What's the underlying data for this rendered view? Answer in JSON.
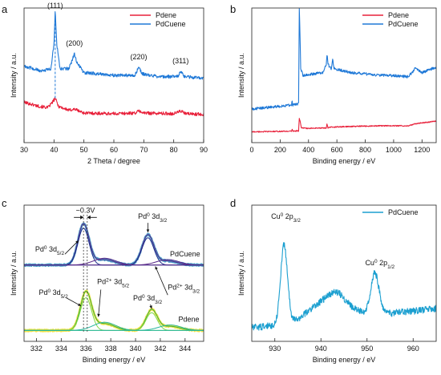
{
  "panels": [
    {
      "id": "a",
      "letter": "a",
      "chart_data": {
        "type": "line",
        "title": "",
        "xlabel": "2 Theta / degree",
        "ylabel": "Intensity / a.u.",
        "xlim": [
          30,
          90
        ],
        "ylim": [
          0,
          1
        ],
        "xticks": [
          30,
          40,
          50,
          60,
          70,
          80,
          90
        ],
        "yticks_visible": false,
        "legend": {
          "position": "top-right",
          "entries": [
            "Pdene",
            "PdCuene"
          ]
        },
        "series": [
          {
            "name": "Pdene",
            "color": "#e8203a",
            "noise": 0.012,
            "points": [
              [
                30,
                0.3
              ],
              [
                35,
                0.27
              ],
              [
                38,
                0.26
              ],
              [
                39.5,
                0.3
              ],
              [
                40.4,
                0.33
              ],
              [
                41.5,
                0.27
              ],
              [
                45,
                0.24
              ],
              [
                46.8,
                0.25
              ],
              [
                50,
                0.22
              ],
              [
                60,
                0.215
              ],
              [
                67,
                0.22
              ],
              [
                68.5,
                0.235
              ],
              [
                70,
                0.22
              ],
              [
                80,
                0.215
              ],
              [
                82.3,
                0.235
              ],
              [
                84,
                0.215
              ],
              [
                90,
                0.21
              ]
            ]
          },
          {
            "name": "PdCuene",
            "color": "#1e78d7",
            "noise": 0.012,
            "points": [
              [
                30,
                0.57
              ],
              [
                36,
                0.53
              ],
              [
                39,
                0.55
              ],
              [
                40.0,
                0.74
              ],
              [
                40.4,
                0.98
              ],
              [
                40.9,
                0.74
              ],
              [
                42,
                0.55
              ],
              [
                45,
                0.55
              ],
              [
                46.2,
                0.62
              ],
              [
                46.8,
                0.66
              ],
              [
                47.6,
                0.6
              ],
              [
                50,
                0.52
              ],
              [
                60,
                0.5
              ],
              [
                67,
                0.5
              ],
              [
                68.3,
                0.56
              ],
              [
                69.5,
                0.51
              ],
              [
                75,
                0.49
              ],
              [
                81.5,
                0.49
              ],
              [
                82.3,
                0.53
              ],
              [
                83.5,
                0.49
              ],
              [
                90,
                0.48
              ]
            ]
          }
        ],
        "annotations": [
          {
            "text": "(111)",
            "x": 40.4,
            "y": 1.0
          },
          {
            "text": "(200)",
            "x": 46.8,
            "y": 0.72
          },
          {
            "text": "(220)",
            "x": 68.3,
            "y": 0.62
          },
          {
            "text": "(311)",
            "x": 82.3,
            "y": 0.59
          }
        ],
        "reference_line": {
          "x": 40.4,
          "y_from": 0.33,
          "y_to": 0.96,
          "color": "#1e78d7",
          "style": "dashed"
        }
      }
    },
    {
      "id": "b",
      "letter": "b",
      "chart_data": {
        "type": "line",
        "title": "",
        "xlabel": "Binding energy / eV",
        "ylabel": "Intensity / a.u.",
        "xlim": [
          0,
          1300
        ],
        "ylim": [
          0,
          1
        ],
        "xticks": [
          0,
          200,
          400,
          600,
          800,
          1000,
          1200
        ],
        "yticks_visible": false,
        "legend": {
          "position": "top-right",
          "entries": [
            "Pdene",
            "PdCuene"
          ]
        },
        "series": [
          {
            "name": "Pdene",
            "color": "#e8203a",
            "noise": 0.004,
            "points": [
              [
                0,
                0.08
              ],
              [
                280,
                0.085
              ],
              [
                284,
                0.1
              ],
              [
                288,
                0.086
              ],
              [
                330,
                0.088
              ],
              [
                335,
                0.18
              ],
              [
                340,
                0.16
              ],
              [
                350,
                0.11
              ],
              [
                400,
                0.105
              ],
              [
                525,
                0.11
              ],
              [
                531,
                0.14
              ],
              [
                537,
                0.11
              ],
              [
                560,
                0.115
              ],
              [
                700,
                0.12
              ],
              [
                900,
                0.125
              ],
              [
                1100,
                0.125
              ],
              [
                1140,
                0.135
              ],
              [
                1150,
                0.14
              ],
              [
                1300,
                0.16
              ]
            ]
          },
          {
            "name": "PdCuene",
            "color": "#1e78d7",
            "noise": 0.01,
            "points": [
              [
                0,
                0.25
              ],
              [
                100,
                0.26
              ],
              [
                200,
                0.27
              ],
              [
                280,
                0.28
              ],
              [
                284,
                0.33
              ],
              [
                288,
                0.28
              ],
              [
                330,
                0.29
              ],
              [
                335,
                1.0
              ],
              [
                340,
                0.8
              ],
              [
                345,
                0.55
              ],
              [
                360,
                0.5
              ],
              [
                500,
                0.52
              ],
              [
                525,
                0.58
              ],
              [
                531,
                0.66
              ],
              [
                537,
                0.58
              ],
              [
                560,
                0.55
              ],
              [
                570,
                0.62
              ],
              [
                580,
                0.55
              ],
              [
                700,
                0.52
              ],
              [
                900,
                0.5
              ],
              [
                950,
                0.5
              ],
              [
                1100,
                0.49
              ],
              [
                1140,
                0.53
              ],
              [
                1150,
                0.55
              ],
              [
                1200,
                0.52
              ],
              [
                1300,
                0.56
              ]
            ]
          }
        ]
      }
    },
    {
      "id": "c",
      "letter": "c",
      "chart_data": {
        "type": "line",
        "title": "",
        "xlabel": "Binding energy / eV",
        "ylabel": "Intensity / a.u.",
        "xlim": [
          331,
          345.5
        ],
        "ylim": [
          0,
          1
        ],
        "xticks": [
          332,
          334,
          336,
          338,
          340,
          342,
          344
        ],
        "yticks_visible": false,
        "series": [
          {
            "name": "PdCuene",
            "color": "#4a9ec8",
            "role": "data",
            "noise": 0.006,
            "base": 0.56,
            "peaks": [
              [
                335.8,
                0.3,
                0.45
              ],
              [
                341.0,
                0.22,
                0.48
              ],
              [
                337.5,
                0.04,
                0.8
              ],
              [
                342.6,
                0.03,
                0.8
              ]
            ]
          },
          {
            "name": "PdCuene-fit",
            "color": "#5a2a8a",
            "role": "fit",
            "noise": 0,
            "base": 0.56,
            "peaks": [
              [
                335.8,
                0.3,
                0.45
              ],
              [
                341.0,
                0.22,
                0.48
              ],
              [
                337.5,
                0.04,
                0.8
              ],
              [
                342.6,
                0.03,
                0.8
              ]
            ]
          },
          {
            "name": "PdCuene-comp1",
            "color": "#1a2a88",
            "role": "component",
            "noise": 0,
            "base": 0.56,
            "peaks": [
              [
                335.8,
                0.27,
                0.45
              ]
            ]
          },
          {
            "name": "PdCuene-comp2",
            "color": "#1a2a88",
            "role": "component",
            "noise": 0,
            "base": 0.56,
            "peaks": [
              [
                341.0,
                0.2,
                0.48
              ]
            ]
          },
          {
            "name": "PdCuene-comp3",
            "color": "#5a2a8a",
            "role": "component",
            "noise": 0,
            "base": 0.56,
            "peaks": [
              [
                337.5,
                0.05,
                0.9
              ]
            ]
          },
          {
            "name": "PdCuene-comp4",
            "color": "#5a2a8a",
            "role": "component",
            "noise": 0,
            "base": 0.56,
            "peaks": [
              [
                342.6,
                0.04,
                0.9
              ]
            ]
          },
          {
            "name": "Pdene",
            "color": "#f2e34a",
            "role": "data",
            "noise": 0.006,
            "base": 0.08,
            "peaks": [
              [
                336.0,
                0.28,
                0.45
              ],
              [
                341.3,
                0.15,
                0.45
              ],
              [
                337.5,
                0.05,
                0.8
              ],
              [
                342.8,
                0.03,
                0.8
              ]
            ]
          },
          {
            "name": "Pdene-fit",
            "color": "#3aaf3a",
            "role": "fit",
            "noise": 0,
            "base": 0.08,
            "peaks": [
              [
                336.0,
                0.28,
                0.45
              ],
              [
                341.3,
                0.15,
                0.45
              ],
              [
                337.5,
                0.05,
                0.8
              ],
              [
                342.8,
                0.03,
                0.8
              ]
            ]
          },
          {
            "name": "Pdene-comp1",
            "color": "#7ed84a",
            "role": "component",
            "noise": 0,
            "base": 0.08,
            "peaks": [
              [
                336.0,
                0.24,
                0.45
              ]
            ]
          },
          {
            "name": "Pdene-comp2",
            "color": "#7ed84a",
            "role": "component",
            "noise": 0,
            "base": 0.08,
            "peaks": [
              [
                341.3,
                0.13,
                0.45
              ]
            ]
          },
          {
            "name": "Pdene-comp3",
            "color": "#2ab8a0",
            "role": "component",
            "noise": 0,
            "base": 0.08,
            "peaks": [
              [
                337.5,
                0.06,
                0.9
              ]
            ]
          },
          {
            "name": "Pdene-comp4",
            "color": "#2ab8a0",
            "role": "component",
            "noise": 0,
            "base": 0.08,
            "peaks": [
              [
                342.8,
                0.04,
                0.9
              ]
            ]
          }
        ],
        "trace_labels": [
          {
            "text": "PdCuene",
            "x": 344.0,
            "y": 0.625
          },
          {
            "text": "Pdene",
            "x": 344.3,
            "y": 0.145
          }
        ],
        "annotations": [
          {
            "id": "pd0-52-top",
            "main": "Pd",
            "sup": "0",
            "rest": " 3d",
            "sub": "5/2",
            "x": 331.9,
            "y": 0.66
          },
          {
            "id": "pd0-32-top",
            "main": "Pd",
            "sup": "0",
            "rest": " 3d",
            "sub": "3/2",
            "x": 340.2,
            "y": 0.9
          },
          {
            "id": "pd2-52",
            "main": "Pd",
            "sup": "2+",
            "rest": " 3d",
            "sub": "5/2",
            "x": 336.9,
            "y": 0.42
          },
          {
            "id": "pd2-32",
            "main": "Pd",
            "sup": "2+",
            "rest": " 3d",
            "sub": "3/2",
            "x": 342.6,
            "y": 0.38
          },
          {
            "id": "pd0-52-bot",
            "main": "Pd",
            "sup": "0",
            "rest": " 3d",
            "sub": "5/2",
            "x": 332.2,
            "y": 0.34
          },
          {
            "id": "pd0-32-bot",
            "main": "Pd",
            "sup": "0",
            "rest": " 3d",
            "sub": "3/2",
            "x": 339.8,
            "y": 0.3
          }
        ],
        "shift": {
          "text": "~0.3V",
          "x_from": 335.8,
          "x_to": 336.1,
          "y": 0.91
        },
        "guide_lines": [
          335.8,
          336.1
        ],
        "pointers": [
          {
            "from": [
              334.3,
              0.64
            ],
            "to": [
              335.4,
              0.74
            ]
          },
          {
            "from": [
              341.0,
              0.87
            ],
            "to": [
              341.0,
              0.8
            ]
          },
          {
            "from": [
              337.2,
              0.38
            ],
            "to": [
              337.0,
              0.18
            ]
          },
          {
            "from": [
              342.6,
              0.34
            ],
            "to": [
              341.6,
              0.55
            ]
          },
          {
            "from": [
              334.4,
              0.32
            ],
            "to": [
              335.6,
              0.26
            ]
          },
          {
            "from": [
              341.2,
              0.27
            ],
            "to": [
              341.3,
              0.24
            ]
          }
        ]
      }
    },
    {
      "id": "d",
      "letter": "d",
      "chart_data": {
        "type": "line",
        "title": "",
        "xlabel": "Binding energy / eV",
        "ylabel": "Intensity / a.u.",
        "xlim": [
          925,
          965
        ],
        "ylim": [
          0,
          1
        ],
        "xticks": [
          930,
          940,
          950,
          960
        ],
        "yticks_visible": false,
        "legend": {
          "position": "top-right",
          "entries": [
            "PdCuene"
          ]
        },
        "series": [
          {
            "name": "PdCuene",
            "color": "#1b9fd0",
            "noise": 0.025,
            "base": 0.1,
            "slope": 0.0035,
            "peaks": [
              [
                932.0,
                0.58,
                0.75
              ],
              [
                940.0,
                0.12,
                3.0
              ],
              [
                943.5,
                0.1,
                1.8
              ],
              [
                951.7,
                0.3,
                0.9
              ],
              [
                946.0,
                0.05,
                3
              ]
            ]
          }
        ],
        "annotations": [
          {
            "id": "cu-32",
            "main": "Cu",
            "sup": "0",
            "rest": " 2p",
            "sub": "3/2",
            "x": 929.2,
            "y": 0.9
          },
          {
            "id": "cu-12",
            "main": "Cu",
            "sup": "0",
            "rest": " 2p",
            "sub": "1/2",
            "x": 949.6,
            "y": 0.56
          }
        ]
      }
    }
  ]
}
